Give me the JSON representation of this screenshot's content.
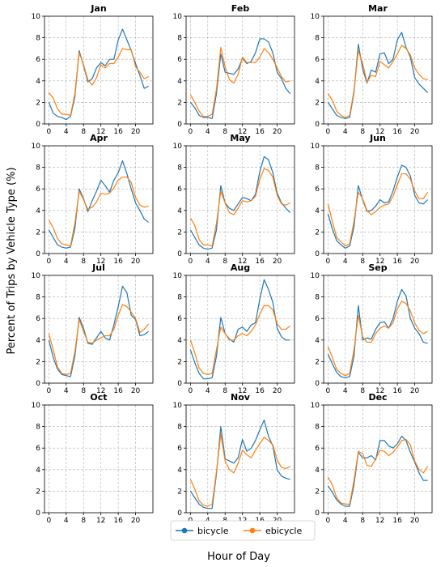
{
  "figure": {
    "xlabel": "Hour of Day",
    "ylabel": "Percent of Trips by Vehicle Type (%)"
  },
  "legend": {
    "placement": "bottom-center",
    "items": [
      {
        "label": "bicycle",
        "color": "#1f77b4"
      },
      {
        "label": "ebicycle",
        "color": "#ff7f0e"
      }
    ]
  },
  "chart_data": {
    "type": "line",
    "layout": "small-multiples 4x3",
    "x": [
      0,
      1,
      2,
      3,
      4,
      5,
      6,
      7,
      8,
      9,
      10,
      11,
      12,
      13,
      14,
      15,
      16,
      17,
      18,
      19,
      20,
      21,
      22,
      23
    ],
    "xticks": [
      0,
      4,
      8,
      12,
      16,
      20
    ],
    "xlim": [
      -1,
      24
    ],
    "ylim": [
      0,
      10
    ],
    "yticks": [
      0,
      2,
      4,
      6,
      8,
      10
    ],
    "grid": true,
    "series_names": [
      "bicycle",
      "ebicycle"
    ],
    "series_colors": [
      "#1f77b4",
      "#ff7f0e"
    ],
    "panels": [
      {
        "title": "Jan",
        "bicycle": [
          2.0,
          1.0,
          0.7,
          0.6,
          0.4,
          0.7,
          2.5,
          6.8,
          5.4,
          3.9,
          4.2,
          5.2,
          5.7,
          5.4,
          6.0,
          6.0,
          7.8,
          8.8,
          7.8,
          6.8,
          5.6,
          4.5,
          3.3,
          3.5
        ],
        "ebicycle": [
          2.9,
          2.4,
          1.4,
          0.9,
          0.9,
          0.8,
          2.8,
          6.6,
          5.5,
          4.1,
          3.6,
          4.3,
          5.5,
          5.2,
          5.6,
          5.6,
          6.2,
          7.0,
          6.9,
          6.9,
          5.3,
          4.8,
          4.2,
          4.4
        ]
      },
      {
        "title": "Feb",
        "bicycle": [
          2.0,
          1.5,
          0.8,
          0.6,
          0.6,
          0.5,
          2.8,
          6.5,
          4.8,
          4.7,
          4.6,
          5.1,
          6.1,
          5.6,
          5.8,
          6.6,
          7.9,
          7.9,
          7.6,
          6.6,
          4.8,
          4.2,
          3.3,
          2.8
        ],
        "ebicycle": [
          2.7,
          2.0,
          1.2,
          0.7,
          0.7,
          0.9,
          3.2,
          7.1,
          5.3,
          4.1,
          3.8,
          4.6,
          6.2,
          5.7,
          5.7,
          5.7,
          6.2,
          7.0,
          6.6,
          6.0,
          5.2,
          4.4,
          3.9,
          4.0
        ]
      },
      {
        "title": "Mar",
        "bicycle": [
          2.0,
          1.4,
          0.8,
          0.6,
          0.5,
          0.6,
          2.9,
          7.4,
          5.1,
          3.8,
          5.0,
          4.8,
          6.5,
          6.6,
          5.6,
          6.0,
          7.8,
          8.5,
          7.1,
          6.2,
          4.3,
          3.7,
          3.3,
          2.9
        ],
        "ebicycle": [
          2.8,
          2.2,
          1.2,
          0.8,
          0.6,
          0.8,
          3.1,
          6.8,
          5.6,
          3.9,
          4.5,
          4.4,
          5.8,
          5.5,
          5.2,
          5.8,
          6.5,
          7.3,
          7.0,
          6.4,
          5.2,
          4.6,
          4.2,
          4.1
        ]
      },
      {
        "title": "Apr",
        "bicycle": [
          2.2,
          1.5,
          0.8,
          0.6,
          0.5,
          0.6,
          2.3,
          6.0,
          5.1,
          3.9,
          4.9,
          5.8,
          6.8,
          6.3,
          5.7,
          6.8,
          7.5,
          8.6,
          7.4,
          6.0,
          4.7,
          4.0,
          3.2,
          2.9
        ],
        "ebicycle": [
          3.1,
          2.4,
          1.4,
          0.9,
          0.8,
          0.7,
          2.8,
          5.8,
          5.0,
          4.1,
          4.3,
          4.8,
          5.6,
          5.5,
          5.6,
          6.1,
          6.8,
          7.1,
          7.1,
          6.6,
          5.2,
          4.5,
          4.3,
          4.4
        ]
      },
      {
        "title": "May",
        "bicycle": [
          2.2,
          1.5,
          0.8,
          0.5,
          0.4,
          0.5,
          2.2,
          6.3,
          4.7,
          4.2,
          4.0,
          4.6,
          5.2,
          5.1,
          4.9,
          5.5,
          7.6,
          9.0,
          8.7,
          7.5,
          5.6,
          4.7,
          4.2,
          3.8
        ],
        "ebicycle": [
          3.3,
          2.6,
          1.3,
          0.8,
          0.8,
          0.7,
          2.8,
          5.8,
          4.7,
          3.8,
          3.6,
          4.2,
          4.9,
          4.8,
          4.9,
          5.3,
          6.9,
          7.9,
          7.7,
          7.1,
          5.4,
          4.6,
          4.5,
          4.7
        ]
      },
      {
        "title": "Jun",
        "bicycle": [
          3.7,
          2.3,
          1.2,
          0.8,
          0.5,
          0.7,
          2.5,
          6.3,
          5.0,
          3.9,
          4.0,
          4.4,
          5.0,
          4.7,
          4.8,
          5.8,
          7.1,
          8.2,
          8.0,
          7.2,
          5.4,
          4.7,
          4.6,
          5.0
        ],
        "ebicycle": [
          4.6,
          3.0,
          1.5,
          1.1,
          0.7,
          0.9,
          3.0,
          5.7,
          5.1,
          4.0,
          3.6,
          3.9,
          4.3,
          4.5,
          4.6,
          5.3,
          6.4,
          7.4,
          7.4,
          6.9,
          5.8,
          5.1,
          5.1,
          5.7
        ]
      },
      {
        "title": "Jul",
        "bicycle": [
          4.0,
          2.4,
          1.3,
          0.8,
          0.7,
          0.6,
          2.5,
          6.1,
          5.1,
          3.7,
          3.6,
          4.2,
          4.8,
          4.2,
          4.0,
          5.4,
          7.1,
          9.0,
          8.4,
          6.3,
          5.9,
          4.4,
          4.5,
          4.8
        ],
        "ebicycle": [
          4.6,
          3.1,
          1.5,
          0.9,
          0.8,
          0.9,
          2.9,
          5.9,
          4.8,
          3.8,
          3.7,
          4.0,
          4.2,
          4.4,
          4.4,
          5.0,
          6.3,
          7.3,
          7.1,
          6.6,
          6.0,
          4.7,
          5.0,
          5.5
        ]
      },
      {
        "title": "Aug",
        "bicycle": [
          3.1,
          1.9,
          0.9,
          0.4,
          0.4,
          0.5,
          2.5,
          6.1,
          4.6,
          4.1,
          3.8,
          5.0,
          5.2,
          4.8,
          5.4,
          5.6,
          7.8,
          9.6,
          8.7,
          7.5,
          5.1,
          4.3,
          4.0,
          4.0
        ],
        "ebicycle": [
          4.0,
          2.8,
          1.4,
          0.9,
          0.8,
          0.9,
          3.1,
          5.2,
          4.6,
          4.0,
          4.0,
          4.4,
          4.6,
          4.4,
          4.8,
          5.4,
          6.4,
          7.2,
          7.2,
          6.8,
          5.5,
          5.0,
          5.0,
          5.3
        ]
      },
      {
        "title": "Sep",
        "bicycle": [
          2.7,
          1.8,
          1.0,
          0.6,
          0.5,
          0.6,
          2.5,
          7.2,
          4.0,
          4.2,
          4.1,
          5.0,
          5.6,
          5.7,
          5.1,
          6.0,
          7.6,
          8.7,
          8.1,
          6.0,
          5.1,
          4.6,
          3.8,
          3.7
        ],
        "ebicycle": [
          3.4,
          2.4,
          1.3,
          0.9,
          0.7,
          0.9,
          3.1,
          6.3,
          4.3,
          3.8,
          3.8,
          4.6,
          5.1,
          5.3,
          5.1,
          5.6,
          6.9,
          7.6,
          7.4,
          6.7,
          5.6,
          4.9,
          4.6,
          4.8
        ]
      },
      {
        "title": "Oct",
        "bicycle": [],
        "ebicycle": []
      },
      {
        "title": "Nov",
        "bicycle": [
          2.0,
          1.4,
          0.8,
          0.5,
          0.4,
          0.4,
          3.6,
          8.0,
          5.0,
          4.8,
          4.6,
          5.1,
          6.8,
          5.7,
          6.0,
          6.7,
          7.7,
          8.6,
          7.1,
          6.2,
          4.0,
          3.4,
          3.2,
          3.1
        ],
        "ebicycle": [
          3.1,
          2.2,
          1.1,
          0.7,
          0.6,
          0.8,
          3.8,
          7.3,
          4.8,
          4.0,
          3.7,
          4.6,
          5.8,
          5.4,
          5.1,
          5.8,
          6.4,
          7.0,
          6.7,
          6.3,
          4.9,
          4.2,
          4.1,
          4.3
        ]
      },
      {
        "title": "Dec",
        "bicycle": [
          2.5,
          1.9,
          1.2,
          0.8,
          0.6,
          0.6,
          2.6,
          5.6,
          5.1,
          5.1,
          5.3,
          4.9,
          6.7,
          6.7,
          6.2,
          6.0,
          6.4,
          7.1,
          6.7,
          5.6,
          4.7,
          3.7,
          3.0,
          3.0
        ],
        "ebicycle": [
          3.3,
          2.6,
          1.4,
          0.9,
          0.8,
          0.8,
          3.0,
          5.7,
          5.5,
          4.4,
          4.3,
          5.0,
          5.8,
          5.7,
          5.3,
          5.6,
          6.1,
          6.7,
          6.8,
          6.3,
          4.8,
          4.0,
          3.7,
          4.3
        ]
      }
    ]
  }
}
